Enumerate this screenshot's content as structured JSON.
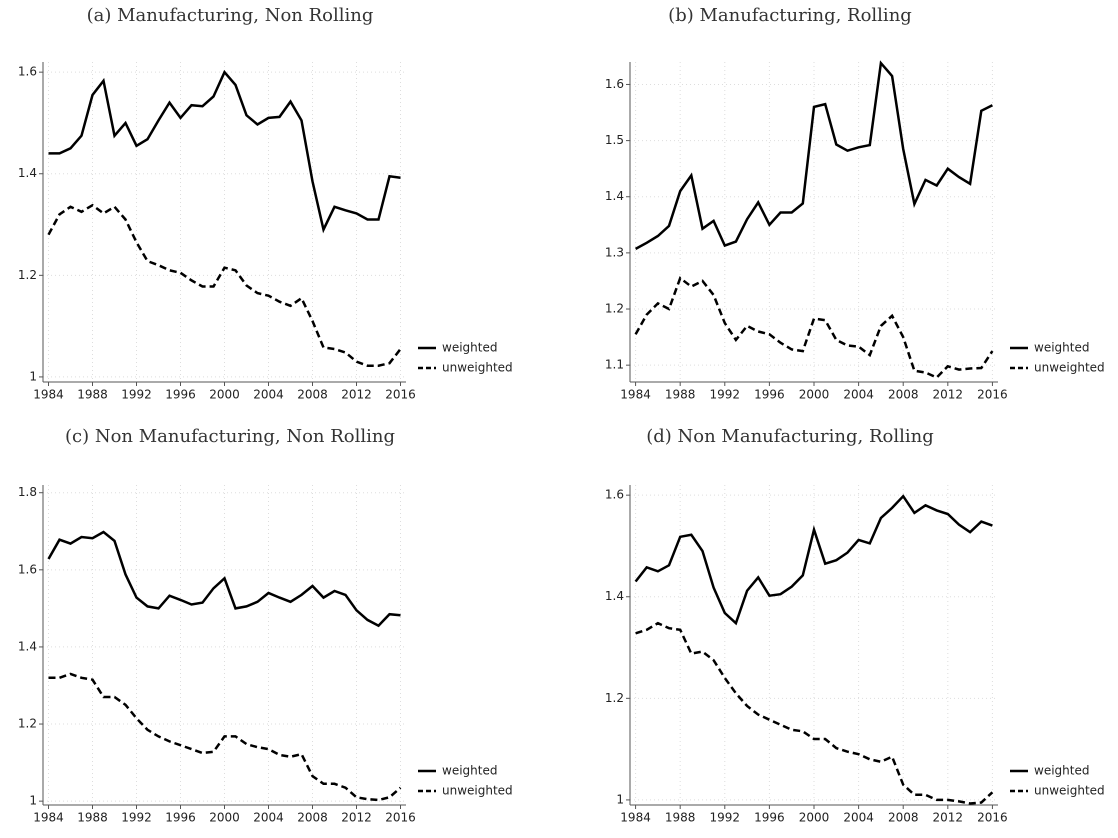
{
  "chart_data": [
    {
      "type": "line",
      "title": "(a) Manufacturing, Non Rolling",
      "x": [
        1984,
        1985,
        1986,
        1987,
        1988,
        1989,
        1990,
        1991,
        1992,
        1993,
        1994,
        1995,
        1996,
        1997,
        1998,
        1999,
        2000,
        2001,
        2002,
        2003,
        2004,
        2005,
        2006,
        2007,
        2008,
        2009,
        2010,
        2011,
        2012,
        2013,
        2014,
        2015,
        2016
      ],
      "xlim": [
        1983.5,
        2016.5
      ],
      "xticks": [
        1984,
        1988,
        1992,
        1996,
        2000,
        2004,
        2008,
        2012,
        2016
      ],
      "ylim": [
        0.99,
        1.62
      ],
      "yticks": [
        1,
        1.2,
        1.4,
        1.6
      ],
      "grid": true,
      "legend": "right",
      "series": [
        {
          "name": "weighted",
          "color": "#000000",
          "style": "solid",
          "values": [
            1.44,
            1.44,
            1.45,
            1.475,
            1.555,
            1.583,
            1.475,
            1.5,
            1.455,
            1.468,
            1.505,
            1.54,
            1.51,
            1.535,
            1.533,
            1.552,
            1.6,
            1.575,
            1.515,
            1.497,
            1.51,
            1.512,
            1.542,
            1.505,
            1.385,
            1.29,
            1.335,
            1.328,
            1.322,
            1.31,
            1.31,
            1.395,
            1.392
          ]
        },
        {
          "name": "unweighted",
          "color": "#000000",
          "style": "dashed",
          "values": [
            1.28,
            1.32,
            1.335,
            1.325,
            1.338,
            1.322,
            1.335,
            1.31,
            1.265,
            1.228,
            1.22,
            1.21,
            1.205,
            1.19,
            1.178,
            1.178,
            1.215,
            1.21,
            1.18,
            1.165,
            1.16,
            1.148,
            1.14,
            1.155,
            1.11,
            1.058,
            1.055,
            1.048,
            1.03,
            1.022,
            1.022,
            1.027,
            1.055
          ]
        }
      ]
    },
    {
      "type": "line",
      "title": "(b) Manufacturing, Rolling",
      "x": [
        1984,
        1985,
        1986,
        1987,
        1988,
        1989,
        1990,
        1991,
        1992,
        1993,
        1994,
        1995,
        1996,
        1997,
        1998,
        1999,
        2000,
        2001,
        2002,
        2003,
        2004,
        2005,
        2006,
        2007,
        2008,
        2009,
        2010,
        2011,
        2012,
        2013,
        2014,
        2015,
        2016
      ],
      "xlim": [
        1983.5,
        2016.5
      ],
      "xticks": [
        1984,
        1988,
        1992,
        1996,
        2000,
        2004,
        2008,
        2012,
        2016
      ],
      "ylim": [
        1.07,
        1.64
      ],
      "yticks": [
        1.1,
        1.2,
        1.3,
        1.4,
        1.5,
        1.6
      ],
      "grid": true,
      "legend": "right",
      "series": [
        {
          "name": "weighted",
          "color": "#000000",
          "style": "solid",
          "values": [
            1.307,
            1.318,
            1.33,
            1.348,
            1.41,
            1.438,
            1.343,
            1.357,
            1.313,
            1.32,
            1.36,
            1.39,
            1.35,
            1.372,
            1.372,
            1.388,
            1.56,
            1.565,
            1.493,
            1.482,
            1.488,
            1.492,
            1.638,
            1.615,
            1.485,
            1.387,
            1.43,
            1.42,
            1.45,
            1.435,
            1.423,
            1.553,
            1.563
          ]
        },
        {
          "name": "unweighted",
          "color": "#000000",
          "style": "dashed",
          "values": [
            1.155,
            1.19,
            1.21,
            1.2,
            1.255,
            1.24,
            1.25,
            1.225,
            1.175,
            1.145,
            1.17,
            1.16,
            1.155,
            1.14,
            1.128,
            1.125,
            1.183,
            1.18,
            1.145,
            1.135,
            1.133,
            1.118,
            1.17,
            1.188,
            1.15,
            1.09,
            1.087,
            1.078,
            1.098,
            1.092,
            1.094,
            1.095,
            1.125
          ]
        }
      ]
    },
    {
      "type": "line",
      "title": "(c) Non Manufacturing, Non Rolling",
      "x": [
        1984,
        1985,
        1986,
        1987,
        1988,
        1989,
        1990,
        1991,
        1992,
        1993,
        1994,
        1995,
        1996,
        1997,
        1998,
        1999,
        2000,
        2001,
        2002,
        2003,
        2004,
        2005,
        2006,
        2007,
        2008,
        2009,
        2010,
        2011,
        2012,
        2013,
        2014,
        2015,
        2016
      ],
      "xlim": [
        1983.5,
        2016.5
      ],
      "xticks": [
        1984,
        1988,
        1992,
        1996,
        2000,
        2004,
        2008,
        2012,
        2016
      ],
      "ylim": [
        0.99,
        1.82
      ],
      "yticks": [
        1,
        1.2,
        1.4,
        1.6,
        1.8
      ],
      "grid": true,
      "legend": "right",
      "series": [
        {
          "name": "weighted",
          "color": "#000000",
          "style": "solid",
          "values": [
            1.628,
            1.678,
            1.668,
            1.685,
            1.682,
            1.698,
            1.675,
            1.588,
            1.528,
            1.505,
            1.5,
            1.533,
            1.522,
            1.51,
            1.515,
            1.552,
            1.578,
            1.5,
            1.505,
            1.517,
            1.54,
            1.528,
            1.517,
            1.535,
            1.558,
            1.528,
            1.545,
            1.535,
            1.495,
            1.47,
            1.455,
            1.485,
            1.482
          ]
        },
        {
          "name": "unweighted",
          "color": "#000000",
          "style": "dashed",
          "values": [
            1.32,
            1.32,
            1.33,
            1.32,
            1.315,
            1.27,
            1.27,
            1.25,
            1.215,
            1.185,
            1.168,
            1.155,
            1.145,
            1.135,
            1.125,
            1.128,
            1.168,
            1.168,
            1.148,
            1.14,
            1.135,
            1.12,
            1.115,
            1.122,
            1.065,
            1.045,
            1.045,
            1.035,
            1.01,
            1.005,
            1.003,
            1.01,
            1.035
          ]
        }
      ]
    },
    {
      "type": "line",
      "title": "(d) Non Manufacturing, Rolling",
      "x": [
        1984,
        1985,
        1986,
        1987,
        1988,
        1989,
        1990,
        1991,
        1992,
        1993,
        1994,
        1995,
        1996,
        1997,
        1998,
        1999,
        2000,
        2001,
        2002,
        2003,
        2004,
        2005,
        2006,
        2007,
        2008,
        2009,
        2010,
        2011,
        2012,
        2013,
        2014,
        2015,
        2016
      ],
      "xlim": [
        1983.5,
        2016.5
      ],
      "xticks": [
        1984,
        1988,
        1992,
        1996,
        2000,
        2004,
        2008,
        2012,
        2016
      ],
      "ylim": [
        0.99,
        1.62
      ],
      "yticks": [
        1,
        1.2,
        1.4,
        1.6
      ],
      "grid": true,
      "legend": "right",
      "series": [
        {
          "name": "weighted",
          "color": "#000000",
          "style": "solid",
          "values": [
            1.43,
            1.458,
            1.45,
            1.462,
            1.518,
            1.522,
            1.49,
            1.418,
            1.368,
            1.348,
            1.412,
            1.438,
            1.402,
            1.405,
            1.42,
            1.442,
            1.532,
            1.465,
            1.472,
            1.487,
            1.512,
            1.505,
            1.555,
            1.575,
            1.598,
            1.565,
            1.58,
            1.57,
            1.563,
            1.542,
            1.527,
            1.548,
            1.54
          ]
        },
        {
          "name": "unweighted",
          "color": "#000000",
          "style": "dashed",
          "values": [
            1.328,
            1.335,
            1.348,
            1.338,
            1.335,
            1.288,
            1.292,
            1.275,
            1.24,
            1.21,
            1.185,
            1.168,
            1.158,
            1.148,
            1.138,
            1.135,
            1.12,
            1.12,
            1.102,
            1.095,
            1.09,
            1.08,
            1.075,
            1.085,
            1.03,
            1.01,
            1.01,
            1.0,
            1.0,
            0.997,
            0.993,
            0.995,
            1.015
          ]
        }
      ]
    }
  ]
}
